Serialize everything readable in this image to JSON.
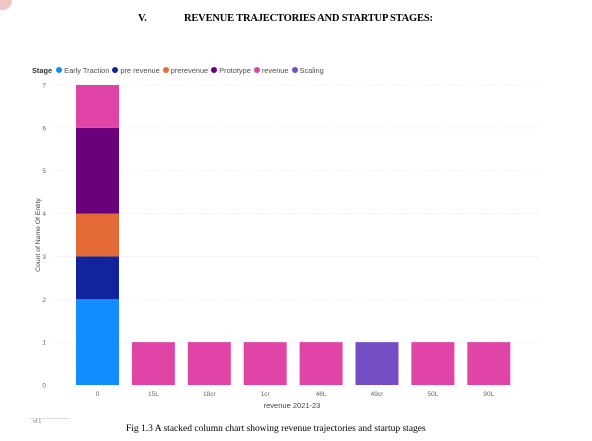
{
  "heading": {
    "number": "V.",
    "title": "REVENUE TRAJECTORIES AND STARTUP STAGES:"
  },
  "caption": "Fig 1.3 A stacked column chart showing revenue trajectories and startup stages",
  "page_ref": "of 1",
  "colors": {
    "early_traction": "#118DFF",
    "pre_revenue": "#12239E",
    "prerevenue": "#E66C37",
    "prototype": "#6B007B",
    "revenue": "#E044A7",
    "scaling": "#744EC2",
    "logo": "#e8a0a0"
  },
  "chart_data": {
    "type": "bar",
    "stacked": true,
    "title": "",
    "legend_title": "Stage",
    "legend_position": "top-left",
    "xlabel": "revenue 2021-23",
    "ylabel": "Count of Name Of Entity",
    "ylim": [
      0,
      7
    ],
    "yticks": [
      "0",
      "1",
      "2",
      "3",
      "4",
      "5",
      "6",
      "7"
    ],
    "grid": true,
    "categories": [
      "0",
      "15L",
      "18cr",
      "1cr",
      "46L",
      "49cr",
      "50L",
      "90L"
    ],
    "series": [
      {
        "name": "Early Traction",
        "color": "#118DFF",
        "values": [
          2,
          0,
          0,
          0,
          0,
          0,
          0,
          0
        ]
      },
      {
        "name": "pre revenue",
        "color": "#12239E",
        "values": [
          1,
          0,
          0,
          0,
          0,
          0,
          0,
          0
        ]
      },
      {
        "name": "prerevenue",
        "color": "#E66C37",
        "values": [
          1,
          0,
          0,
          0,
          0,
          0,
          0,
          0
        ]
      },
      {
        "name": "Prototype",
        "color": "#6B007B",
        "values": [
          2,
          0,
          0,
          0,
          0,
          0,
          0,
          0
        ]
      },
      {
        "name": "revenue",
        "color": "#E044A7",
        "values": [
          1,
          1,
          1,
          1,
          1,
          0,
          1,
          1
        ]
      },
      {
        "name": "Scaling",
        "color": "#744EC2",
        "values": [
          0,
          0,
          0,
          0,
          0,
          1,
          0,
          0
        ]
      }
    ]
  }
}
